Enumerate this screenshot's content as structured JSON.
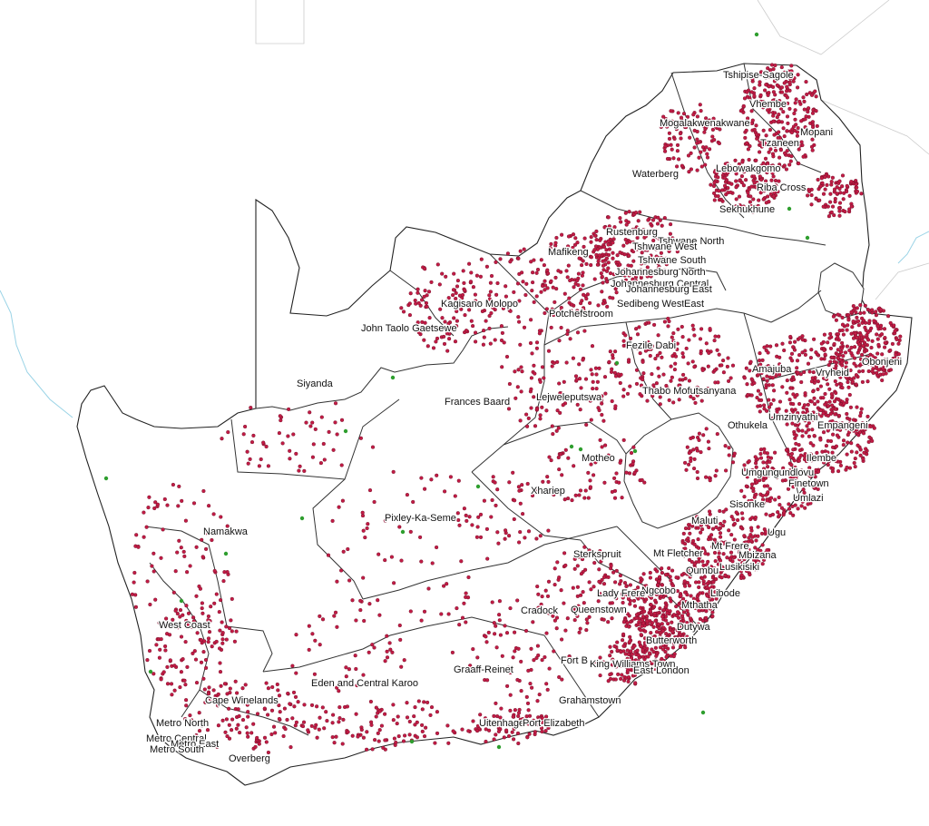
{
  "map": {
    "point_colors": {
      "facility": "#c21b45",
      "facility_outline": "#6a0f26",
      "site": "#2e9e2e"
    },
    "labels": [
      {
        "id": "tshipise-sagole",
        "text": "Tshipise-Sagole"
      },
      {
        "id": "vhembe",
        "text": "Vhembe"
      },
      {
        "id": "mogalakwenakwane",
        "text": "Mogalakwenakwane"
      },
      {
        "id": "mopani",
        "text": "Mopani"
      },
      {
        "id": "tzaneen",
        "text": "Tzaneen"
      },
      {
        "id": "waterberg",
        "text": "Waterberg"
      },
      {
        "id": "lebowakgomo",
        "text": "Lebowakgomo"
      },
      {
        "id": "riba-cross",
        "text": "Riba Cross"
      },
      {
        "id": "sekhukhune",
        "text": "Sekhukhune"
      },
      {
        "id": "rustenburg",
        "text": "Rustenburg"
      },
      {
        "id": "tshwane-north",
        "text": "Tshwane North"
      },
      {
        "id": "tshwane-west",
        "text": "Tshwane West"
      },
      {
        "id": "mafikeng",
        "text": "Mafikeng"
      },
      {
        "id": "tshwane-south",
        "text": "Tshwane South"
      },
      {
        "id": "johannesburg-north",
        "text": "Johannesburg North"
      },
      {
        "id": "johannesburg-central",
        "text": "Johannesburg Central"
      },
      {
        "id": "johannesburg-east",
        "text": "Johannesburg East"
      },
      {
        "id": "kagisano-molopo",
        "text": "Kagisano Molopo"
      },
      {
        "id": "sedibeng-west",
        "text": "Sedibeng West"
      },
      {
        "id": "east",
        "text": "East"
      },
      {
        "id": "potchefstroom",
        "text": "Potchefstroom"
      },
      {
        "id": "john-taolo-gaetsewe",
        "text": "John Taolo Gaetsewe"
      },
      {
        "id": "fezile-dabi",
        "text": "Fezile Dabi"
      },
      {
        "id": "amajuba",
        "text": "Amajuba"
      },
      {
        "id": "obonjeni",
        "text": "Obonjeni"
      },
      {
        "id": "vryheid",
        "text": "Vryheid"
      },
      {
        "id": "siyanda",
        "text": "Siyanda"
      },
      {
        "id": "thabo-mofutsanyana",
        "text": "Thabo Mofutsanyana"
      },
      {
        "id": "frances-baard",
        "text": "Frances Baard"
      },
      {
        "id": "lejweleputswa",
        "text": "Lejweleputswa"
      },
      {
        "id": "umzinyathi",
        "text": "Umzinyathi"
      },
      {
        "id": "othukela",
        "text": "Othukela"
      },
      {
        "id": "empangeni",
        "text": "Empangeni"
      },
      {
        "id": "motheo",
        "text": "Motheo"
      },
      {
        "id": "ilembe",
        "text": "Ilembe"
      },
      {
        "id": "umgungundlovu",
        "text": "Umgungundlovu"
      },
      {
        "id": "finetown",
        "text": "Finetown"
      },
      {
        "id": "xhariep",
        "text": "Xhariep"
      },
      {
        "id": "umlazi",
        "text": "Umlazi"
      },
      {
        "id": "sisonke",
        "text": "Sisonke"
      },
      {
        "id": "pixley-ka-seme",
        "text": "Pixley-Ka-Seme"
      },
      {
        "id": "maluti",
        "text": "Maluti"
      },
      {
        "id": "namakwa",
        "text": "Namakwa"
      },
      {
        "id": "ugu",
        "text": "Ugu"
      },
      {
        "id": "mt-frere",
        "text": "Mt Frere"
      },
      {
        "id": "sterkspruit",
        "text": "Sterkspruit"
      },
      {
        "id": "mt-fletcher",
        "text": "Mt Fletcher"
      },
      {
        "id": "mbizana",
        "text": "Mbizana"
      },
      {
        "id": "lusikisiki",
        "text": "Lusikisiki"
      },
      {
        "id": "qumbu",
        "text": "Qumbu"
      },
      {
        "id": "ngcobo",
        "text": "Ngcobo"
      },
      {
        "id": "lady-frere",
        "text": "Lady Frere"
      },
      {
        "id": "libode",
        "text": "Libode"
      },
      {
        "id": "mthatha",
        "text": "Mthatha"
      },
      {
        "id": "cradock",
        "text": "Cradock"
      },
      {
        "id": "queenstown",
        "text": "Queenstown"
      },
      {
        "id": "west-coast",
        "text": "West Coast"
      },
      {
        "id": "dutywa",
        "text": "Dutywa"
      },
      {
        "id": "butterworth",
        "text": "Butterworth"
      },
      {
        "id": "fort-beaufort",
        "text": "Fort B"
      },
      {
        "id": "king-williams-town",
        "text": "King Williams Town"
      },
      {
        "id": "east-london",
        "text": "East London"
      },
      {
        "id": "graaff-reinet",
        "text": "Graaff-Reinet"
      },
      {
        "id": "eden-central-karoo",
        "text": "Eden and Central Karoo"
      },
      {
        "id": "cape-winelands",
        "text": "Cape Winelands"
      },
      {
        "id": "grahamstown",
        "text": "Grahamstown"
      },
      {
        "id": "uitenhage",
        "text": "Uitenhage"
      },
      {
        "id": "port-elizabeth",
        "text": "Port Elizabeth"
      },
      {
        "id": "metro-north",
        "text": "Metro North"
      },
      {
        "id": "metro-central",
        "text": "Metro Central"
      },
      {
        "id": "metro-east",
        "text": "Metro East"
      },
      {
        "id": "metro-south",
        "text": "Metro South"
      },
      {
        "id": "overberg",
        "text": "Overberg"
      }
    ]
  }
}
